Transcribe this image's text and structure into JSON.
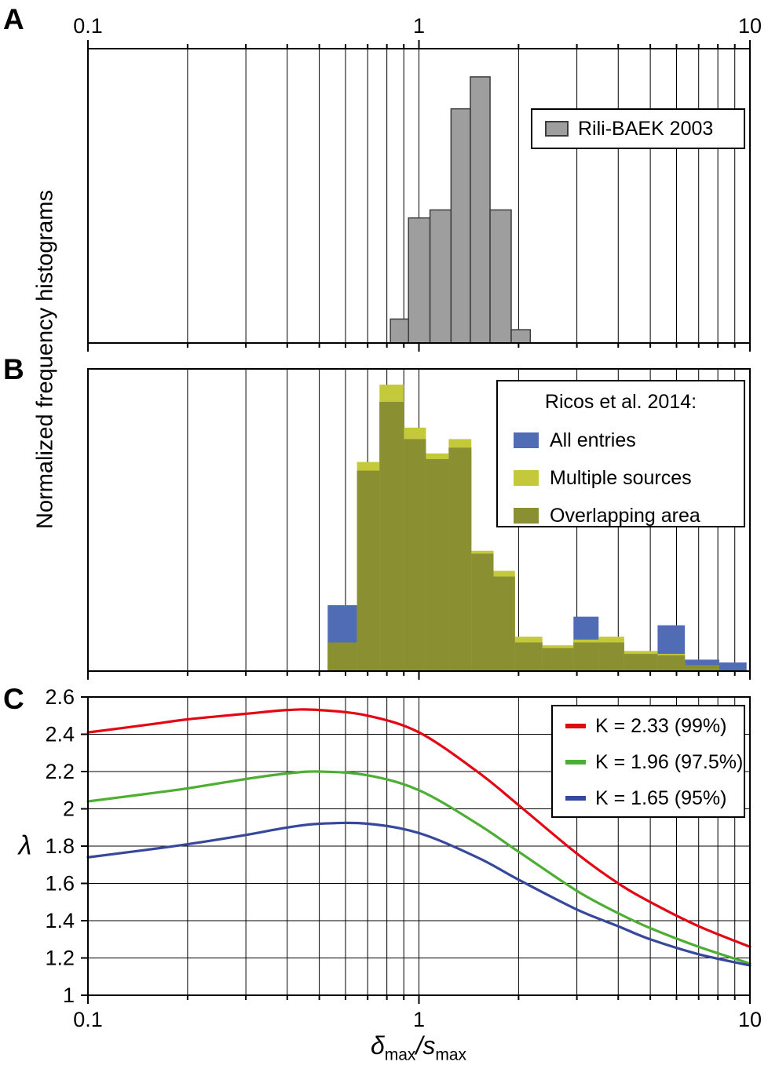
{
  "figure": {
    "panel_letters": [
      "A",
      "B",
      "C"
    ],
    "ylabel_histograms": "Normalized frequency histograms",
    "ylabel_lambda": "λ",
    "xlabel": {
      "delta": "δ",
      "sub1": "max",
      "slash_s": "/s",
      "sub2": "max"
    },
    "background": "#ffffff",
    "axis_color": "#000000",
    "top_axis": {
      "labels": [
        "0.1",
        "1",
        "10"
      ],
      "values": [
        0.1,
        1,
        10
      ]
    },
    "bottom_axis": {
      "labels": [
        "0.1",
        "1",
        "10"
      ],
      "values": [
        0.1,
        1,
        10
      ]
    }
  },
  "chart_data": [
    {
      "panel": "A",
      "type": "bar",
      "xscale": "log",
      "xlim": [
        0.1,
        10
      ],
      "ymax": 1.106,
      "grid": "vertical",
      "bin_edges": [
        0.82,
        0.93,
        1.08,
        1.25,
        1.43,
        1.64,
        1.9,
        2.17
      ],
      "values": [
        0.09,
        0.47,
        0.5,
        0.88,
        1.0,
        0.5,
        0.05
      ],
      "bar_color": "#9e9e9e",
      "bar_edge_color": "#3c3c3c",
      "legend_items": [
        {
          "label": "Rili-BAEK 2003",
          "color": "#9e9e9e"
        }
      ]
    },
    {
      "panel": "B",
      "type": "histogram-overlay",
      "xscale": "log",
      "xlim": [
        0.1,
        10
      ],
      "ymax": 1.055,
      "grid": "vertical",
      "legend_title": "Ricos et al. 2014:",
      "bin_edges": [
        0.53,
        0.65,
        0.76,
        0.9,
        1.05,
        1.23,
        1.44,
        1.68,
        1.95,
        2.36,
        2.93,
        3.49,
        4.17,
        5.26,
        6.36,
        8.08,
        9.77
      ],
      "series": [
        {
          "name": "All entries",
          "color": "#4f6cb5",
          "values": [
            0.23,
            0.7,
            0.94,
            0.81,
            0.74,
            0.78,
            0.41,
            0.33,
            0.1,
            0.08,
            0.19,
            0.1,
            0.07,
            0.16,
            0.04,
            0.03
          ]
        },
        {
          "name": "Multiple sources",
          "color": "#c3c93b",
          "values": [
            0.1,
            0.73,
            1.0,
            0.85,
            0.76,
            0.81,
            0.42,
            0.35,
            0.12,
            0.09,
            0.11,
            0.12,
            0.07,
            0.06,
            0.02,
            0.0
          ]
        },
        {
          "name": "Overlapping area",
          "color": "#8a9032",
          "values": [
            0.1,
            0.7,
            0.94,
            0.81,
            0.74,
            0.78,
            0.41,
            0.33,
            0.1,
            0.08,
            0.1,
            0.1,
            0.06,
            0.055,
            0.02,
            0.0
          ]
        }
      ],
      "legend_items": [
        {
          "label": "All entries",
          "color": "#4f6cb5"
        },
        {
          "label": "Multiple sources",
          "color": "#c3c93b"
        },
        {
          "label": "Overlapping area",
          "color": "#8a9032"
        }
      ]
    },
    {
      "panel": "C",
      "type": "line",
      "xscale": "log",
      "xlim": [
        0.1,
        10
      ],
      "ylim": [
        1,
        2.6
      ],
      "yticks": [
        1,
        1.2,
        1.4,
        1.6,
        1.8,
        2,
        2.2,
        2.4,
        2.6
      ],
      "ytick_labels": [
        "1",
        "1.2",
        "1.4",
        "1.6",
        "1.8",
        "2",
        "2.2",
        "2.4",
        "2.6"
      ],
      "grid": "both",
      "x": [
        0.1,
        0.15,
        0.2,
        0.3,
        0.4,
        0.5,
        0.7,
        1.0,
        1.5,
        2,
        3,
        4,
        5,
        7,
        10
      ],
      "series": [
        {
          "name": "K = 2.33 (99%)",
          "color": "#e30613",
          "values": [
            2.41,
            2.45,
            2.48,
            2.51,
            2.53,
            2.53,
            2.5,
            2.41,
            2.2,
            2.02,
            1.76,
            1.6,
            1.5,
            1.37,
            1.26
          ]
        },
        {
          "name": "K = 1.96 (97.5%)",
          "color": "#4cae32",
          "values": [
            2.04,
            2.08,
            2.11,
            2.16,
            2.19,
            2.2,
            2.18,
            2.1,
            1.92,
            1.77,
            1.56,
            1.44,
            1.36,
            1.26,
            1.17
          ]
        },
        {
          "name": "K = 1.65 (95%)",
          "color": "#36489c",
          "values": [
            1.74,
            1.78,
            1.81,
            1.86,
            1.9,
            1.92,
            1.92,
            1.87,
            1.74,
            1.62,
            1.46,
            1.37,
            1.3,
            1.22,
            1.16
          ]
        }
      ],
      "legend_items": [
        {
          "label": "K = 2.33 (99%)",
          "color": "#e30613"
        },
        {
          "label": "K = 1.96 (97.5%)",
          "color": "#4cae32"
        },
        {
          "label": "K = 1.65 (95%)",
          "color": "#36489c"
        }
      ]
    }
  ]
}
